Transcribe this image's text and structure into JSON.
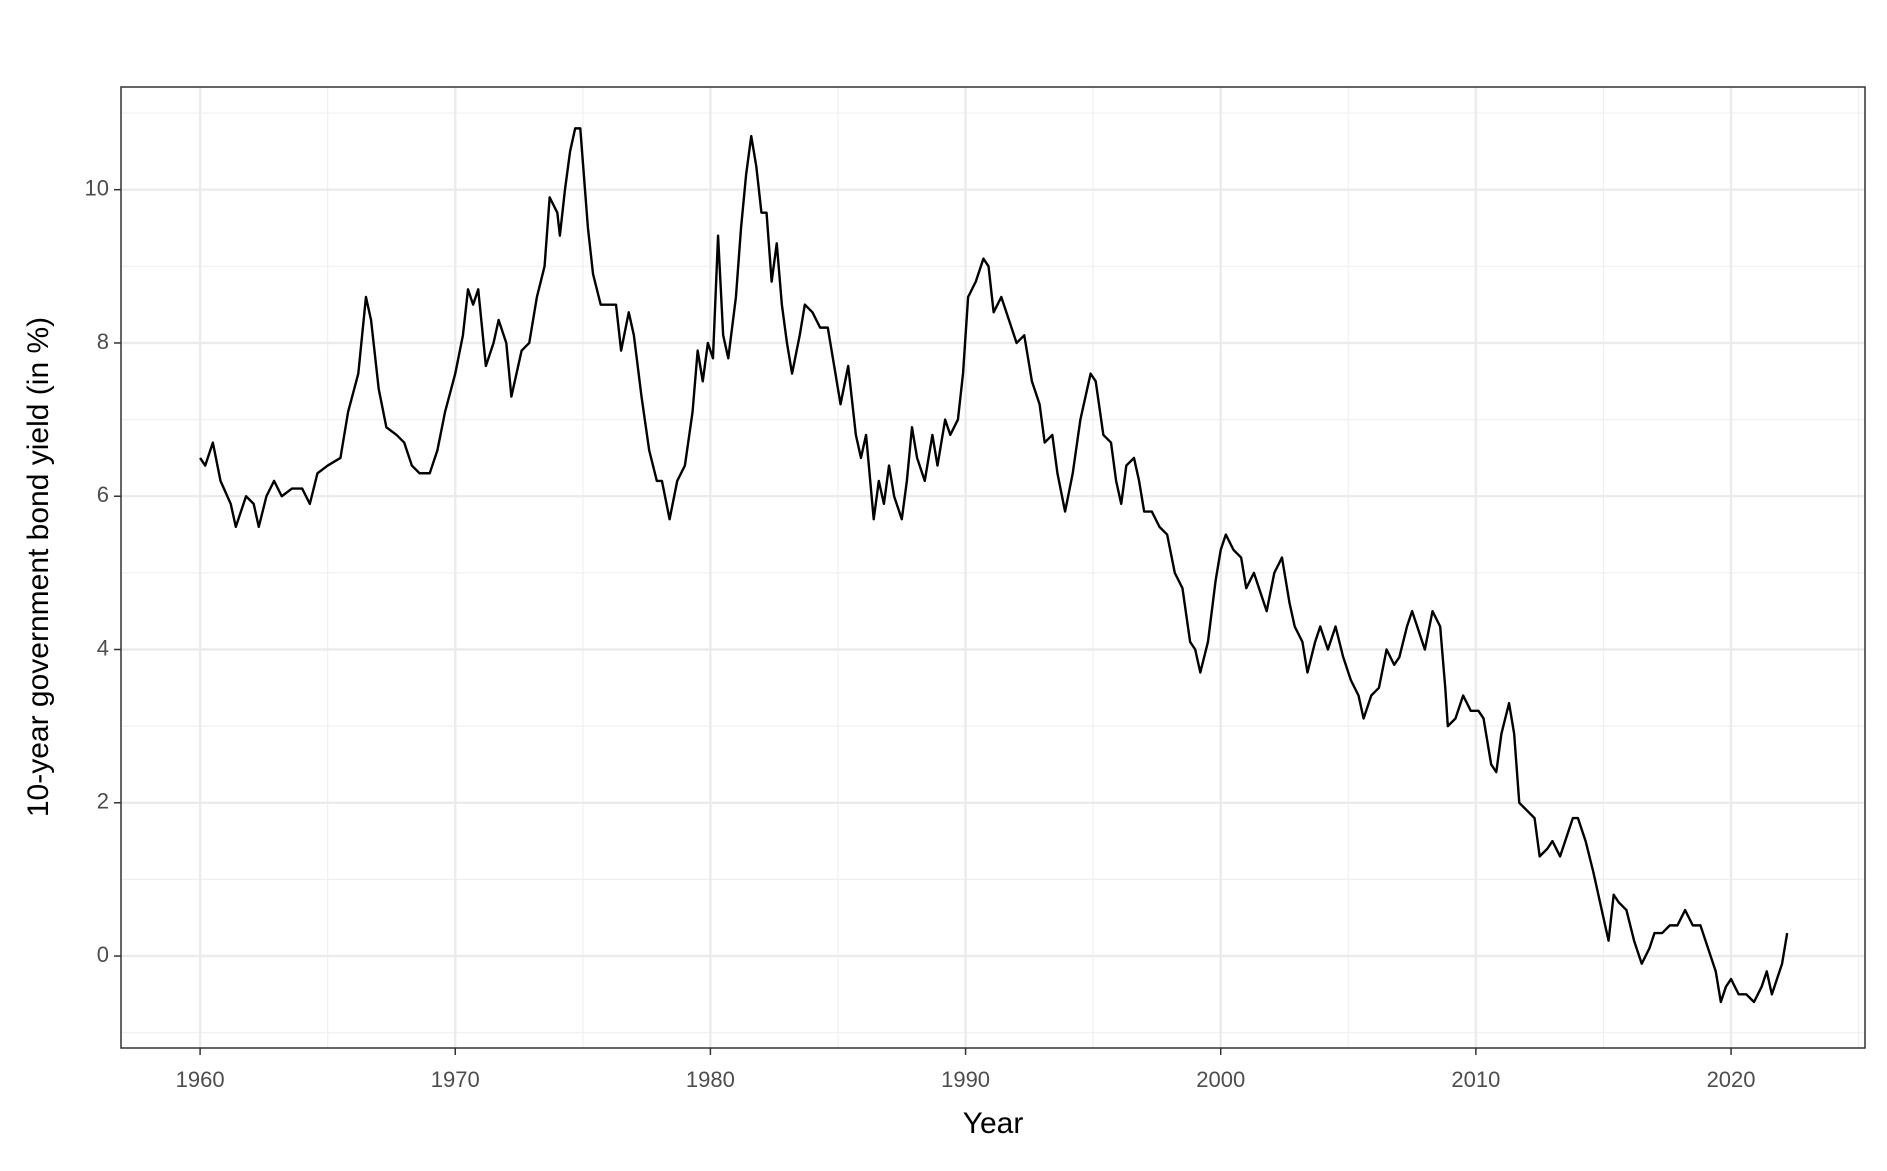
{
  "chart_data": {
    "type": "line",
    "x_label": "Year",
    "y_label": "10-year government bond yield (in %)",
    "xlim": [
      1956.9,
      2025.25
    ],
    "ylim": [
      -1.2,
      11.34
    ],
    "xticks": [
      1960,
      1970,
      1980,
      1990,
      2000,
      2010,
      2020
    ],
    "yticks": [
      0,
      2,
      4,
      6,
      8,
      10
    ],
    "grid": true,
    "minor_grid": true,
    "color": "#000000",
    "x": [
      1960.0,
      1960.2,
      1960.5,
      1960.8,
      1961.2,
      1961.4,
      1961.8,
      1962.1,
      1962.3,
      1962.6,
      1962.9,
      1963.2,
      1963.6,
      1964.0,
      1964.3,
      1964.6,
      1965.0,
      1965.5,
      1965.8,
      1966.2,
      1966.5,
      1966.7,
      1967.0,
      1967.3,
      1967.7,
      1968.0,
      1968.3,
      1968.6,
      1969.0,
      1969.3,
      1969.6,
      1970.0,
      1970.3,
      1970.5,
      1970.7,
      1970.9,
      1971.2,
      1971.5,
      1971.7,
      1972.0,
      1972.2,
      1972.6,
      1972.9,
      1973.2,
      1973.5,
      1973.7,
      1974.0,
      1974.1,
      1974.3,
      1974.5,
      1974.7,
      1974.9,
      1975.2,
      1975.4,
      1975.7,
      1976.0,
      1976.3,
      1976.5,
      1976.8,
      1977.0,
      1977.3,
      1977.6,
      1977.9,
      1978.1,
      1978.4,
      1978.7,
      1979.0,
      1979.3,
      1979.5,
      1979.7,
      1979.9,
      1980.1,
      1980.3,
      1980.5,
      1980.7,
      1981.0,
      1981.2,
      1981.4,
      1981.6,
      1981.8,
      1982.0,
      1982.2,
      1982.4,
      1982.6,
      1982.8,
      1983.0,
      1983.2,
      1983.5,
      1983.7,
      1984.0,
      1984.3,
      1984.6,
      1984.9,
      1985.1,
      1985.4,
      1985.7,
      1985.9,
      1986.1,
      1986.4,
      1986.6,
      1986.8,
      1987.0,
      1987.2,
      1987.5,
      1987.7,
      1987.9,
      1988.1,
      1988.4,
      1988.7,
      1988.9,
      1989.2,
      1989.4,
      1989.7,
      1989.9,
      1990.1,
      1990.4,
      1990.7,
      1990.9,
      1991.1,
      1991.4,
      1991.7,
      1992.0,
      1992.3,
      1992.6,
      1992.9,
      1993.1,
      1993.4,
      1993.6,
      1993.9,
      1994.2,
      1994.5,
      1994.7,
      1994.9,
      1995.1,
      1995.4,
      1995.7,
      1995.9,
      1996.1,
      1996.3,
      1996.6,
      1996.8,
      1997.0,
      1997.3,
      1997.6,
      1997.9,
      1998.2,
      1998.5,
      1998.8,
      1999.0,
      1999.2,
      1999.5,
      1999.8,
      2000.0,
      2000.2,
      2000.5,
      2000.8,
      2001.0,
      2001.3,
      2001.5,
      2001.8,
      2002.1,
      2002.4,
      2002.7,
      2002.9,
      2003.2,
      2003.4,
      2003.7,
      2003.9,
      2004.2,
      2004.5,
      2004.8,
      2005.1,
      2005.4,
      2005.6,
      2005.9,
      2006.2,
      2006.5,
      2006.8,
      2007.0,
      2007.3,
      2007.5,
      2007.8,
      2008.0,
      2008.3,
      2008.6,
      2008.8,
      2008.9,
      2009.2,
      2009.5,
      2009.8,
      2010.1,
      2010.3,
      2010.6,
      2010.8,
      2011.0,
      2011.3,
      2011.5,
      2011.7,
      2012.0,
      2012.3,
      2012.5,
      2012.8,
      2013.0,
      2013.3,
      2013.6,
      2013.8,
      2014.0,
      2014.3,
      2014.6,
      2014.8,
      2015.0,
      2015.2,
      2015.4,
      2015.6,
      2015.9,
      2016.2,
      2016.5,
      2016.8,
      2017.0,
      2017.3,
      2017.6,
      2017.9,
      2018.2,
      2018.5,
      2018.8,
      2019.1,
      2019.4,
      2019.6,
      2019.8,
      2020.0,
      2020.3,
      2020.6,
      2020.9,
      2021.2,
      2021.4,
      2021.6,
      2021.8,
      2022.0,
      2022.2
    ],
    "y": [
      6.5,
      6.4,
      6.7,
      6.2,
      5.9,
      5.6,
      6.0,
      5.9,
      5.6,
      6.0,
      6.2,
      6.0,
      6.1,
      6.1,
      5.9,
      6.3,
      6.4,
      6.5,
      7.1,
      7.6,
      8.6,
      8.3,
      7.4,
      6.9,
      6.8,
      6.7,
      6.4,
      6.3,
      6.3,
      6.6,
      7.1,
      7.6,
      8.1,
      8.7,
      8.5,
      8.7,
      7.7,
      8.0,
      8.3,
      8.0,
      7.3,
      7.9,
      8.0,
      8.6,
      9.0,
      9.9,
      9.7,
      9.4,
      10.0,
      10.5,
      10.8,
      10.8,
      9.5,
      8.9,
      8.5,
      8.5,
      8.5,
      7.9,
      8.4,
      8.1,
      7.3,
      6.6,
      6.2,
      6.2,
      5.7,
      6.2,
      6.4,
      7.1,
      7.9,
      7.5,
      8.0,
      7.8,
      9.4,
      8.1,
      7.8,
      8.6,
      9.5,
      10.2,
      10.7,
      10.3,
      9.7,
      9.7,
      8.8,
      9.3,
      8.5,
      8.0,
      7.6,
      8.1,
      8.5,
      8.4,
      8.2,
      8.2,
      7.6,
      7.2,
      7.7,
      6.8,
      6.5,
      6.8,
      5.7,
      6.2,
      5.9,
      6.4,
      6.0,
      5.7,
      6.2,
      6.9,
      6.5,
      6.2,
      6.8,
      6.4,
      7.0,
      6.8,
      7.0,
      7.6,
      8.6,
      8.8,
      9.1,
      9.0,
      8.4,
      8.6,
      8.3,
      8.0,
      8.1,
      7.5,
      7.2,
      6.7,
      6.8,
      6.3,
      5.8,
      6.3,
      7.0,
      7.3,
      7.6,
      7.5,
      6.8,
      6.7,
      6.2,
      5.9,
      6.4,
      6.5,
      6.2,
      5.8,
      5.8,
      5.6,
      5.5,
      5.0,
      4.8,
      4.1,
      4.0,
      3.7,
      4.1,
      4.9,
      5.3,
      5.5,
      5.3,
      5.2,
      4.8,
      5.0,
      4.8,
      4.5,
      5.0,
      5.2,
      4.6,
      4.3,
      4.1,
      3.7,
      4.1,
      4.3,
      4.0,
      4.3,
      3.9,
      3.6,
      3.4,
      3.1,
      3.4,
      3.5,
      4.0,
      3.8,
      3.9,
      4.3,
      4.5,
      4.2,
      4.0,
      4.5,
      4.3,
      3.5,
      3.0,
      3.1,
      3.4,
      3.2,
      3.2,
      3.1,
      2.5,
      2.4,
      2.9,
      3.3,
      2.9,
      2.0,
      1.9,
      1.8,
      1.3,
      1.4,
      1.5,
      1.3,
      1.6,
      1.8,
      1.8,
      1.5,
      1.1,
      0.8,
      0.5,
      0.2,
      0.8,
      0.7,
      0.6,
      0.2,
      -0.1,
      0.1,
      0.3,
      0.3,
      0.4,
      0.4,
      0.6,
      0.4,
      0.4,
      0.1,
      -0.2,
      -0.6,
      -0.4,
      -0.3,
      -0.5,
      -0.5,
      -0.6,
      -0.4,
      -0.2,
      -0.5,
      -0.3,
      -0.1,
      0.3
    ]
  }
}
